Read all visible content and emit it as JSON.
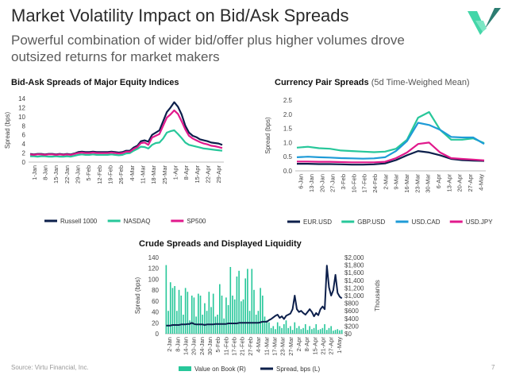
{
  "header": {
    "title": "Market Volatility Impact on Bid/Ask Spreads",
    "subtitle": "Powerful combination of wider bid/offer plus higher volumes drove outsized returns for market makers"
  },
  "footer": {
    "source": "Source: Virtu Financial, Inc.",
    "page": "7"
  },
  "colors": {
    "navy": "#0c1f4b",
    "teal": "#27c79a",
    "pink": "#e1198c",
    "blue": "#1e9bd7",
    "logo_light": "#43d6a8",
    "logo_dark": "#2d7d72"
  },
  "chart_data": [
    {
      "id": "equity",
      "type": "line",
      "title": "Bid-Ask Spreads of Major Equity Indices",
      "ylabel": "Spread (bps)",
      "ylim": [
        0,
        14
      ],
      "yticks": [
        0,
        2,
        4,
        6,
        8,
        10,
        12,
        14
      ],
      "x_tick_labels": [
        "1-Jan",
        "8-Jan",
        "15-Jan",
        "22-Jan",
        "29-Jan",
        "5-Feb",
        "12-Feb",
        "19-Feb",
        "26-Feb",
        "4-Mar",
        "11-Mar",
        "18-Mar",
        "25-Mar",
        "1-Apr",
        "8-Apr",
        "15-Apr",
        "22-Apr",
        "29-Apr"
      ],
      "series": [
        {
          "name": "Russell 1000",
          "color": "#0c1f4b",
          "values": [
            1.8,
            1.7,
            1.8,
            1.8,
            1.7,
            1.8,
            1.8,
            1.7,
            1.8,
            1.7,
            1.8,
            1.7,
            1.9,
            2.2,
            2.3,
            2.2,
            2.2,
            2.3,
            2.2,
            2.2,
            2.2,
            2.2,
            2.3,
            2.2,
            2.1,
            2.2,
            2.5,
            2.5,
            3.2,
            3.6,
            4.6,
            4.8,
            4.5,
            6.0,
            6.5,
            7.0,
            9.0,
            11.0,
            12.0,
            13.2,
            12.2,
            10.5,
            8.0,
            6.5,
            5.8,
            5.5,
            5.0,
            4.8,
            4.6,
            4.3,
            4.2,
            4.1,
            3.8
          ]
        },
        {
          "name": "NASDAQ",
          "color": "#27c79a",
          "values": [
            1.3,
            1.3,
            1.2,
            1.3,
            1.3,
            1.2,
            1.2,
            1.3,
            1.2,
            1.2,
            1.3,
            1.2,
            1.4,
            1.6,
            1.7,
            1.6,
            1.6,
            1.7,
            1.6,
            1.6,
            1.6,
            1.6,
            1.7,
            1.6,
            1.5,
            1.6,
            1.9,
            2.0,
            2.5,
            2.9,
            3.4,
            3.3,
            3.0,
            3.8,
            4.2,
            4.3,
            5.2,
            6.5,
            6.8,
            7.0,
            6.2,
            5.3,
            4.3,
            3.8,
            3.6,
            3.4,
            3.2,
            3.0,
            2.9,
            2.8,
            2.7,
            2.6,
            2.5
          ]
        },
        {
          "name": "SP500",
          "color": "#e1198c",
          "values": [
            1.7,
            1.6,
            1.7,
            1.7,
            1.6,
            1.7,
            1.7,
            1.6,
            1.7,
            1.6,
            1.7,
            1.6,
            1.8,
            2.0,
            2.1,
            2.0,
            2.0,
            2.1,
            2.0,
            2.0,
            2.0,
            2.0,
            2.1,
            2.0,
            1.9,
            2.0,
            2.3,
            2.3,
            2.9,
            3.3,
            4.2,
            4.3,
            3.8,
            5.4,
            5.8,
            6.2,
            8.0,
            9.8,
            10.5,
            11.4,
            10.6,
            9.0,
            7.2,
            5.8,
            5.2,
            4.8,
            4.4,
            4.1,
            3.9,
            3.6,
            3.5,
            3.3,
            3.1
          ]
        }
      ]
    },
    {
      "id": "fx",
      "type": "line",
      "title": "Currency Pair Spreads",
      "title_note": "(5d Time-Weighed Mean)",
      "ylabel": "Spread (bps)",
      "ylim": [
        0,
        2.5
      ],
      "yticks": [
        "0.0",
        "0.5",
        "1.0",
        "1.5",
        "2.0",
        "2.5"
      ],
      "x_tick_labels": [
        "6-Jan",
        "13-Jan",
        "20-Jan",
        "27-Jan",
        "3-Feb",
        "10-Feb",
        "17-Feb",
        "24-Feb",
        "2-Mar",
        "9-Mar",
        "16-Mar",
        "23-Mar",
        "30-Mar",
        "6-Apr",
        "13-Apr",
        "20-Apr",
        "27-Apr",
        "4-May"
      ],
      "series": [
        {
          "name": "EUR.USD",
          "color": "#0c1f4b",
          "values": [
            0.25,
            0.25,
            0.24,
            0.24,
            0.23,
            0.22,
            0.22,
            0.23,
            0.26,
            0.38,
            0.55,
            0.7,
            0.65,
            0.55,
            0.42,
            0.38,
            0.36,
            0.35
          ]
        },
        {
          "name": "GBP.USD",
          "color": "#27c79a",
          "values": [
            0.82,
            0.85,
            0.8,
            0.78,
            0.72,
            0.7,
            0.68,
            0.66,
            0.68,
            0.78,
            1.1,
            1.88,
            2.08,
            1.45,
            1.1,
            1.1,
            1.15,
            0.98
          ]
        },
        {
          "name": "USD.CAD",
          "color": "#1e9bd7",
          "values": [
            0.48,
            0.5,
            0.48,
            0.47,
            0.45,
            0.44,
            0.43,
            0.44,
            0.48,
            0.7,
            1.05,
            1.7,
            1.62,
            1.45,
            1.2,
            1.18,
            1.18,
            0.95
          ]
        },
        {
          "name": "USD.JPY",
          "color": "#e1198c",
          "values": [
            0.33,
            0.33,
            0.32,
            0.32,
            0.31,
            0.3,
            0.3,
            0.3,
            0.32,
            0.45,
            0.65,
            0.95,
            1.0,
            0.65,
            0.45,
            0.42,
            0.4,
            0.37
          ]
        }
      ]
    },
    {
      "id": "crude",
      "type": "bar+line",
      "title": "Crude Spreads and Displayed Liquidity",
      "ylabel_left": "Spread (bps)",
      "ylabel_right": "Thousands",
      "ylim_left": [
        0,
        140
      ],
      "ylim_right": [
        0,
        2000
      ],
      "yticks_left": [
        0,
        20,
        40,
        60,
        80,
        100,
        120,
        140
      ],
      "yticks_right": [
        "$0",
        "$200",
        "$400",
        "$600",
        "$800",
        "$1,000",
        "$1,200",
        "$1,400",
        "$1,600",
        "$1,800",
        "$2,000"
      ],
      "x_tick_labels": [
        "2-Jan",
        "8-Jan",
        "14-Jan",
        "20-Jan",
        "24-Jan",
        "30-Jan",
        "5-Feb",
        "11-Feb",
        "17-Feb",
        "21-Feb",
        "27-Feb",
        "4-Mar",
        "11-Mar",
        "17-Mar",
        "23-Mar",
        "27-Mar",
        "2-Apr",
        "8-Apr",
        "15-Apr",
        "21-Apr",
        "27-Apr",
        "1-May"
      ],
      "bars": {
        "name": "Value on Book (R)",
        "color": "#27c79a",
        "values": [
          1800,
          600,
          1350,
          1200,
          1250,
          600,
          1150,
          1000,
          500,
          1200,
          1100,
          350,
          1000,
          950,
          450,
          1050,
          1000,
          500,
          800,
          600,
          1100,
          700,
          1050,
          450,
          500,
          1300,
          1000,
          400,
          950,
          750,
          1750,
          1000,
          900,
          1500,
          1650,
          850,
          900,
          1450,
          1700,
          600,
          1700,
          1150,
          500,
          600,
          1200,
          1000,
          450,
          350,
          300,
          150,
          200,
          120,
          300,
          200,
          150,
          250,
          350,
          150,
          200,
          100,
          300,
          150,
          200,
          120,
          150,
          250,
          100,
          200,
          120,
          150,
          250,
          100,
          120,
          150,
          250,
          100,
          150,
          200,
          80,
          100,
          120,
          90,
          100
        ]
      },
      "line": {
        "name": "Spread, bps (L)",
        "color": "#0c1f4b",
        "values": [
          15,
          15,
          15,
          16,
          16,
          16,
          16,
          17,
          17,
          17,
          18,
          18,
          20,
          18,
          17,
          17,
          17,
          17,
          16,
          17,
          17,
          17,
          17,
          18,
          18,
          18,
          18,
          18,
          18,
          19,
          19,
          19,
          19,
          19,
          20,
          20,
          20,
          20,
          20,
          20,
          20,
          20,
          20,
          20,
          21,
          22,
          22,
          22,
          25,
          27,
          30,
          33,
          35,
          29,
          32,
          27,
          33,
          35,
          37,
          45,
          70,
          45,
          40,
          42,
          38,
          35,
          40,
          45,
          40,
          32,
          38,
          34,
          45,
          50,
          45,
          125,
          85,
          70,
          80,
          108,
          75,
          68,
          65
        ]
      }
    }
  ]
}
